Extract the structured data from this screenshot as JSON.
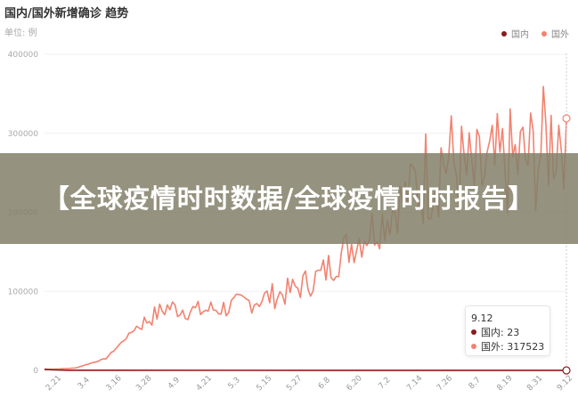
{
  "header": {
    "title": "国内/国外新增确诊 趋势",
    "unit": "单位: 例"
  },
  "legend": [
    {
      "label": "国内",
      "color": "#8b1a1a"
    },
    {
      "label": "国外",
      "color": "#f28270"
    }
  ],
  "overlay": {
    "text": "【全球疫情时时数据/全球疫情时时报告】"
  },
  "tooltip": {
    "date": "9.12",
    "rows": [
      {
        "label": "国内: 23",
        "color": "#8b1a1a"
      },
      {
        "label": "国外: 317523",
        "color": "#f28270"
      }
    ]
  },
  "chart_data": {
    "type": "line",
    "title": "国内/国外新增确诊 趋势",
    "ylabel": "单位: 例",
    "xlabel": "",
    "ylim": [
      0,
      400000
    ],
    "yticks": [
      "0",
      "100000",
      "200000",
      "300000",
      "400000"
    ],
    "xticks": [
      "2.21",
      "3.4",
      "3.16",
      "3.28",
      "4.9",
      "4.21",
      "5.3",
      "5.15",
      "5.27",
      "6.8",
      "6.20",
      "7.2",
      "7.14",
      "7.26",
      "8.7",
      "8.19",
      "8.31",
      "9.12"
    ],
    "grid": true,
    "legend_position": "top-right",
    "series": [
      {
        "name": "国内",
        "color": "#8b1a1a",
        "values_at_ticks": [
          1500,
          300,
          50,
          60,
          70,
          20,
          5,
          10,
          15,
          20,
          30,
          10,
          50,
          100,
          80,
          40,
          20,
          23
        ]
      },
      {
        "name": "国外",
        "color": "#f28270",
        "values_at_ticks": [
          800,
          3000,
          15000,
          55000,
          80000,
          75000,
          80000,
          90000,
          100000,
          120000,
          160000,
          190000,
          230000,
          270000,
          240000,
          260000,
          270000,
          317523
        ]
      }
    ],
    "highlight": {
      "x": "9.12",
      "国内": 23,
      "国外": 317523
    }
  }
}
